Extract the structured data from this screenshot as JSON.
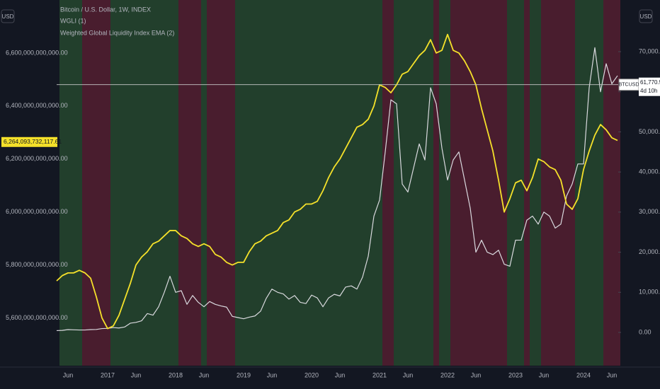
{
  "chart_data": {
    "type": "line",
    "currency": "USD",
    "annotations": [
      "WGLI (1)"
    ],
    "categories": [
      null,
      null,
      "Jun",
      null,
      null,
      null,
      null,
      null,
      null,
      "2017",
      null,
      null,
      null,
      null,
      "Jun",
      null,
      null,
      null,
      null,
      null,
      null,
      "2018",
      null,
      null,
      null,
      null,
      "Jun",
      null,
      null,
      null,
      null,
      null,
      null,
      "2019",
      null,
      null,
      null,
      null,
      "Jun",
      null,
      null,
      null,
      null,
      null,
      null,
      "2020",
      null,
      null,
      null,
      null,
      "Jun",
      null,
      null,
      null,
      null,
      null,
      null,
      "2021",
      null,
      null,
      null,
      null,
      "Jun",
      null,
      null,
      null,
      null,
      null,
      null,
      "2022",
      null,
      null,
      null,
      null,
      "Jun",
      null,
      null,
      null,
      null,
      null,
      null,
      "2023",
      null,
      null,
      null,
      null,
      "Jun",
      null,
      null,
      null,
      null,
      null,
      null,
      "2024",
      null,
      null,
      null,
      null,
      "Jun",
      null
    ],
    "series": [
      {
        "name": "Bitcoin / U.S. Dollar, 1W, INDEX",
        "color": "#d9d9de",
        "axis": "y2",
        "last_value": 61770.56,
        "last_label": "61,770.56",
        "ticker": "BTCUSD",
        "countdown": "4d 10h",
        "values": [
          450,
          500,
          700,
          650,
          600,
          600,
          700,
          740,
          960,
          1000,
          1200,
          1100,
          1350,
          2300,
          2500,
          2900,
          4700,
          4300,
          6400,
          10000,
          14000,
          10000,
          10400,
          7000,
          9200,
          7500,
          6400,
          7700,
          7000,
          6600,
          6300,
          4000,
          3700,
          3400,
          3800,
          4100,
          5300,
          8500,
          10800,
          10000,
          9600,
          8300,
          9200,
          7500,
          7200,
          9300,
          8600,
          6400,
          8600,
          9500,
          9100,
          11300,
          11600,
          10800,
          13800,
          19000,
          29000,
          33000,
          45000,
          58000,
          57000,
          37000,
          35000,
          41000,
          47000,
          43000,
          61000,
          57000,
          46000,
          38000,
          43000,
          45000,
          38000,
          31000,
          20000,
          23000,
          20000,
          19400,
          20500,
          17000,
          16500,
          23000,
          23000,
          28000,
          29000,
          27000,
          30000,
          29000,
          26000,
          27000,
          34000,
          37000,
          42000,
          42000,
          61000,
          71000,
          60000,
          67000,
          62000,
          64000
        ]
      },
      {
        "name": "Weighted Global Liquidity Index EMA (2)",
        "color": "#f5e12a",
        "axis": "y",
        "last_value": 6264093732117.61,
        "last_label": "6,264,093,732,117.61",
        "values": [
          5740000000000.0,
          5760000000000.0,
          5770000000000.0,
          5770000000000.0,
          5780000000000.0,
          5770000000000.0,
          5750000000000.0,
          5680000000000.0,
          5600000000000.0,
          5560000000000.0,
          5570000000000.0,
          5610000000000.0,
          5670000000000.0,
          5730000000000.0,
          5800000000000.0,
          5830000000000.0,
          5850000000000.0,
          5880000000000.0,
          5890000000000.0,
          5910000000000.0,
          5930000000000.0,
          5930000000000.0,
          5910000000000.0,
          5900000000000.0,
          5880000000000.0,
          5870000000000.0,
          5880000000000.0,
          5870000000000.0,
          5840000000000.0,
          5830000000000.0,
          5810000000000.0,
          5800000000000.0,
          5810000000000.0,
          5810000000000.0,
          5850000000000.0,
          5880000000000.0,
          5890000000000.0,
          5910000000000.0,
          5920000000000.0,
          5930000000000.0,
          5960000000000.0,
          5970000000000.0,
          6000000000000.0,
          6010000000000.0,
          6030000000000.0,
          6030000000000.0,
          6040000000000.0,
          6080000000000.0,
          6130000000000.0,
          6170000000000.0,
          6200000000000.0,
          6240000000000.0,
          6280000000000.0,
          6320000000000.0,
          6330000000000.0,
          6350000000000.0,
          6400000000000.0,
          6480000000000.0,
          6470000000000.0,
          6450000000000.0,
          6480000000000.0,
          6520000000000.0,
          6530000000000.0,
          6560000000000.0,
          6590000000000.0,
          6610000000000.0,
          6650000000000.0,
          6600000000000.0,
          6610000000000.0,
          6670000000000.0,
          6610000000000.0,
          6600000000000.0,
          6570000000000.0,
          6530000000000.0,
          6480000000000.0,
          6390000000000.0,
          6310000000000.0,
          6230000000000.0,
          6120000000000.0,
          6000000000000.0,
          6050000000000.0,
          6110000000000.0,
          6120000000000.0,
          6080000000000.0,
          6130000000000.0,
          6200000000000.0,
          6190000000000.0,
          6170000000000.0,
          6160000000000.0,
          6120000000000.0,
          6030000000000.0,
          6010000000000.0,
          6050000000000.0,
          6160000000000.0,
          6230000000000.0,
          6290000000000.0,
          6330000000000.0,
          6310000000000.0,
          6280000000000.0,
          6270000000000.0
        ]
      }
    ],
    "ylim": [
      5420000000000.0,
      6800000000000.0
    ],
    "yticks": [
      {
        "value": 5600000000000.0,
        "label": "5,600,000,000,000.00"
      },
      {
        "value": 5800000000000.0,
        "label": "5,800,000,000,000.00"
      },
      {
        "value": 6000000000000.0,
        "label": "6,000,000,000,000.00"
      },
      {
        "value": 6200000000000.0,
        "label": "6,200,000,000,000.00"
      },
      {
        "value": 6400000000000.0,
        "label": "6,400,000,000,000.00"
      },
      {
        "value": 6600000000000.0,
        "label": "6,600,000,000,000.00"
      }
    ],
    "y2lim": [
      -8290,
      82880
    ],
    "y2ticks": [
      {
        "value": 0,
        "label": "0.00"
      },
      {
        "value": 10000,
        "label": "10,000.00"
      },
      {
        "value": 20000,
        "label": "20,000.00"
      },
      {
        "value": 30000,
        "label": "30,000.00"
      },
      {
        "value": 40000,
        "label": "40,000.00"
      },
      {
        "value": 50000,
        "label": "50,000.00"
      },
      {
        "value": 60000,
        "label": "60,000.00"
      },
      {
        "value": 70000,
        "label": "70,000.00"
      }
    ],
    "grid": false
  }
}
